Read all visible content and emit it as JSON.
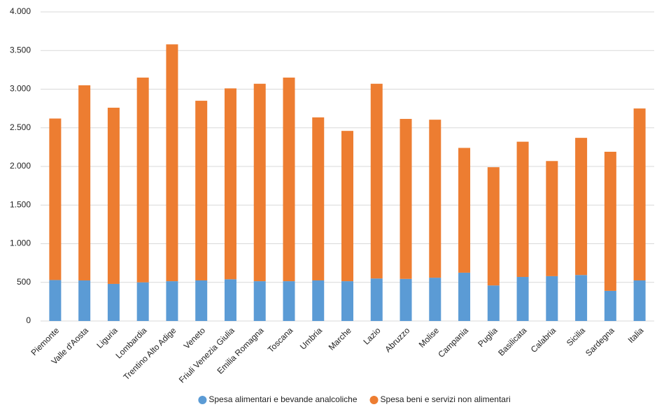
{
  "chart_data": {
    "type": "stacked-bar",
    "categories": [
      "Piemonte",
      "Valle d'Aosta",
      "Liguria",
      "Lombardia",
      "Trentino Alto Adige",
      "Veneto",
      "Friuli Venezia Giulia",
      "Emilia Romagna",
      "Toscana",
      "Umbria",
      "Marche",
      "Lazio",
      "Abruzzo",
      "Molise",
      "Campania",
      "Puglia",
      "Basilicata",
      "Calabria",
      "Sicilia",
      "Sardegna",
      "Italia"
    ],
    "series": [
      {
        "name": "Spesa alimentari e bevande analcoliche",
        "color": "#5b9bd5",
        "values": [
          530,
          525,
          480,
          500,
          515,
          525,
          540,
          515,
          515,
          525,
          515,
          550,
          545,
          560,
          625,
          460,
          570,
          580,
          595,
          390,
          525
        ]
      },
      {
        "name": "Spesa beni e servizi non alimentari",
        "color": "#ed7d31",
        "values": [
          2090,
          2525,
          2280,
          2650,
          3065,
          2325,
          2470,
          2555,
          2635,
          2110,
          1945,
          2520,
          2070,
          2045,
          1615,
          1530,
          1750,
          1490,
          1775,
          1800,
          2225
        ]
      }
    ],
    "ylim": [
      0,
      4000
    ],
    "yticks": [
      0,
      500,
      {
        "value": 1000,
        "label": "1.000"
      },
      {
        "value": 1500,
        "label": "1.500"
      },
      {
        "value": 2000,
        "label": "2.000"
      },
      {
        "value": 2500,
        "label": "2.500"
      },
      {
        "value": 3000,
        "label": "3.000"
      },
      {
        "value": 3500,
        "label": "3.500"
      },
      {
        "value": 4000,
        "label": "4.000"
      }
    ],
    "grid": true,
    "legend": "bottom"
  }
}
